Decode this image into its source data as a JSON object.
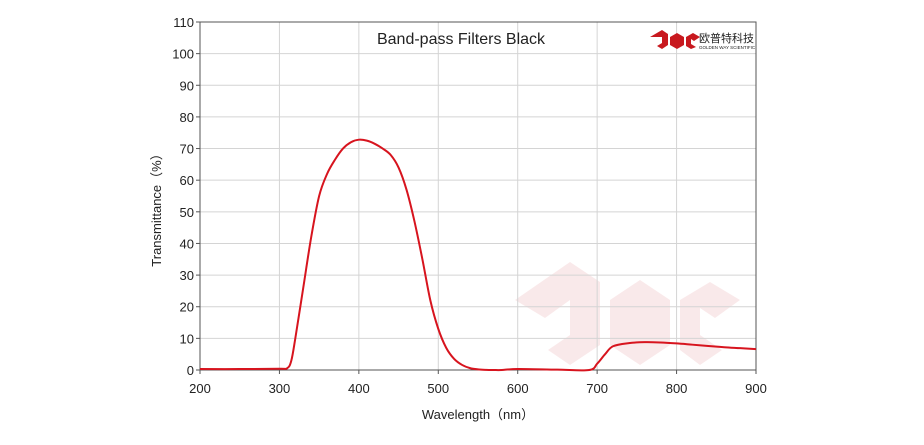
{
  "chart_data": {
    "type": "line",
    "title": "Band-pass  Filters Black",
    "xlabel": "Wavelength（nm）",
    "ylabel": "Transmittance（%）",
    "xlim": [
      200,
      900
    ],
    "ylim": [
      0,
      110
    ],
    "xticks": [
      200,
      300,
      400,
      500,
      600,
      700,
      800,
      900
    ],
    "yticks": [
      0,
      10,
      20,
      30,
      40,
      50,
      60,
      70,
      80,
      90,
      100,
      110
    ],
    "grid": true,
    "series": [
      {
        "color": "#d7141e",
        "x": [
          200,
          250,
          300,
          310,
          315,
          320,
          330,
          340,
          350,
          360,
          370,
          380,
          390,
          400,
          410,
          420,
          430,
          440,
          450,
          460,
          470,
          480,
          490,
          500,
          510,
          520,
          530,
          540,
          550,
          560,
          570,
          580,
          600,
          650,
          690,
          700,
          710,
          720,
          740,
          760,
          780,
          800,
          820,
          840,
          860,
          880,
          900
        ],
        "y": [
          0.3,
          0.3,
          0.4,
          0.6,
          3,
          10,
          26,
          42,
          55,
          62,
          66.5,
          70,
          72,
          72.8,
          72.5,
          71.5,
          70,
          68,
          64,
          57,
          47,
          35,
          22,
          13,
          7,
          3.5,
          1.6,
          0.6,
          0.2,
          0.05,
          0,
          0,
          0.3,
          0.1,
          0,
          2,
          5,
          7.5,
          8.5,
          8.8,
          8.7,
          8.4,
          8.0,
          7.6,
          7.2,
          6.9,
          6.6
        ]
      }
    ]
  },
  "watermark": {
    "logo_text": "欧普特科技",
    "logo_subtext": "GOLDEN WAY SCIENTIFIC",
    "brand_color": "#c8191f"
  }
}
